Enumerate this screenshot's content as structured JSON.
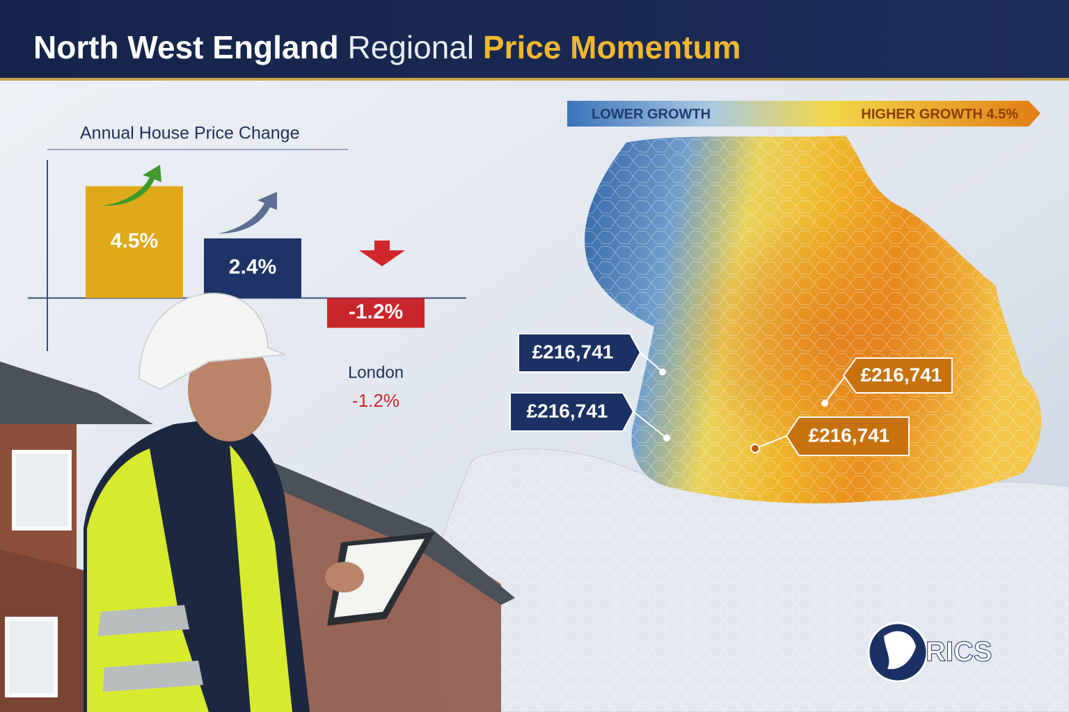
{
  "header": {
    "title_parts": [
      "North West England",
      "Regional",
      "Price Momentum"
    ]
  },
  "chart_data": {
    "type": "bar",
    "title": "Annual House Price Change",
    "categories": [
      null,
      null,
      "London"
    ],
    "values": [
      4.5,
      2.4,
      -1.2
    ],
    "value_labels": [
      "4.5%",
      "2.4%",
      "-1.2%"
    ],
    "colors": [
      "#e0a91a",
      "#1f3466",
      "#c8262a"
    ],
    "ylim": [
      -2,
      5
    ]
  },
  "map": {
    "legend": {
      "low": "LOWER GROWTH",
      "high": "HIGHER GROWTH 4.5%"
    },
    "callouts": [
      "£216,741",
      "£216,741",
      "£216,741",
      "£216,741"
    ]
  },
  "logo": {
    "text": "RICS"
  }
}
